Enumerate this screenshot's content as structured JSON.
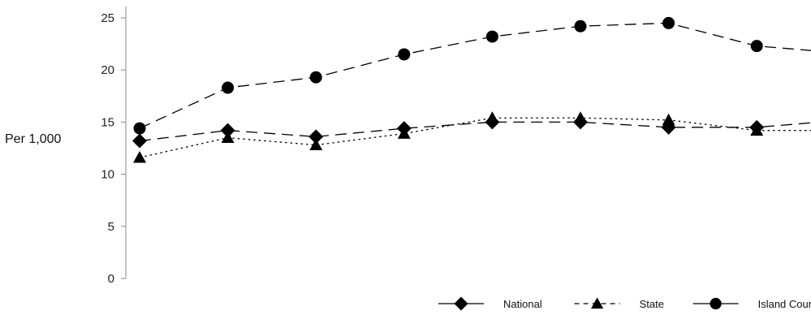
{
  "chart_data": {
    "type": "line",
    "title": "",
    "xlabel": "",
    "ylabel": "Per 1,000",
    "ylim": [
      0,
      25
    ],
    "yticks": [
      0,
      5,
      10,
      15,
      20,
      25
    ],
    "grid": false,
    "legend_placement": "bottom-right",
    "x": [
      1,
      2,
      3,
      4,
      5,
      6,
      7,
      8,
      9
    ],
    "series": [
      {
        "name": "National",
        "marker": "diamond",
        "dash": "long-dash",
        "color": "#000000",
        "values": [
          13.2,
          14.2,
          13.6,
          14.4,
          15.0,
          15.0,
          14.5,
          14.5,
          15.2
        ]
      },
      {
        "name": "State",
        "marker": "triangle",
        "dash": "dotted",
        "color": "#000000",
        "values": [
          11.6,
          13.5,
          12.8,
          13.9,
          15.4,
          15.4,
          15.2,
          14.2,
          14.2
        ]
      },
      {
        "name": "Island County",
        "marker": "circle",
        "dash": "long-dash",
        "color": "#000000",
        "values": [
          14.4,
          18.3,
          19.3,
          21.5,
          23.2,
          24.2,
          24.5,
          22.3,
          21.6
        ]
      }
    ]
  }
}
